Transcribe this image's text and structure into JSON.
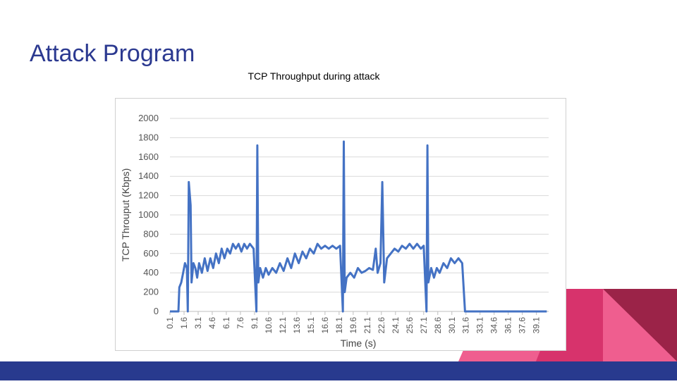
{
  "slide_title": "Attack Program",
  "chart_data": {
    "type": "line",
    "title": "TCP Throughput during attack",
    "x_label": "Time (s)",
    "y_label": "TCP Throuput (Kbps)",
    "color": "#4472c4",
    "grid": true,
    "xlim": [
      0.1,
      40.4
    ],
    "xticks": [
      0.1,
      1.6,
      3.1,
      4.6,
      6.1,
      7.6,
      9.1,
      10.6,
      12.1,
      13.6,
      15.1,
      16.6,
      18.1,
      19.6,
      21.1,
      22.6,
      24.1,
      25.6,
      27.1,
      28.6,
      30.1,
      31.6,
      33.1,
      34.6,
      36.1,
      37.6,
      39.1
    ],
    "ylim": [
      0,
      2000
    ],
    "yticks": [
      0,
      200,
      400,
      600,
      800,
      1000,
      1200,
      1400,
      1600,
      1800,
      2000
    ],
    "x": [
      0.1,
      1.0,
      1.1,
      1.3,
      1.5,
      1.7,
      1.9,
      2.0,
      2.1,
      2.3,
      2.4,
      2.6,
      2.8,
      3.0,
      3.2,
      3.5,
      3.8,
      4.1,
      4.4,
      4.7,
      5.0,
      5.3,
      5.6,
      5.9,
      6.2,
      6.5,
      6.8,
      7.1,
      7.4,
      7.7,
      8.0,
      8.3,
      8.6,
      9.0,
      9.3,
      9.4,
      9.5,
      9.7,
      10.0,
      10.3,
      10.6,
      11.0,
      11.4,
      11.8,
      12.2,
      12.6,
      13.0,
      13.4,
      13.8,
      14.2,
      14.6,
      15.0,
      15.4,
      15.8,
      16.2,
      16.6,
      17.0,
      17.4,
      17.8,
      18.2,
      18.5,
      18.6,
      18.7,
      18.9,
      19.3,
      19.7,
      20.1,
      20.5,
      20.9,
      21.3,
      21.7,
      22.0,
      22.2,
      22.5,
      22.7,
      22.9,
      23.2,
      23.6,
      24.0,
      24.4,
      24.8,
      25.2,
      25.6,
      26.0,
      26.4,
      26.8,
      27.1,
      27.4,
      27.5,
      27.6,
      27.9,
      28.2,
      28.5,
      28.8,
      29.2,
      29.6,
      30.0,
      30.4,
      30.8,
      31.2,
      31.5,
      31.9,
      40.2
    ],
    "values": [
      0,
      0,
      250,
      300,
      400,
      500,
      450,
      0,
      1340,
      1100,
      300,
      500,
      450,
      350,
      500,
      400,
      550,
      420,
      550,
      450,
      600,
      500,
      650,
      550,
      650,
      600,
      700,
      650,
      700,
      620,
      700,
      650,
      700,
      650,
      0,
      1720,
      300,
      450,
      350,
      450,
      380,
      450,
      400,
      500,
      420,
      550,
      450,
      600,
      500,
      620,
      550,
      650,
      600,
      700,
      650,
      680,
      650,
      680,
      650,
      680,
      0,
      1760,
      200,
      350,
      400,
      350,
      450,
      400,
      420,
      450,
      430,
      650,
      400,
      500,
      1340,
      300,
      550,
      600,
      650,
      620,
      680,
      650,
      700,
      650,
      700,
      650,
      680,
      0,
      1720,
      300,
      450,
      350,
      450,
      400,
      500,
      450,
      550,
      500,
      550,
      500,
      0,
      0,
      0
    ]
  }
}
